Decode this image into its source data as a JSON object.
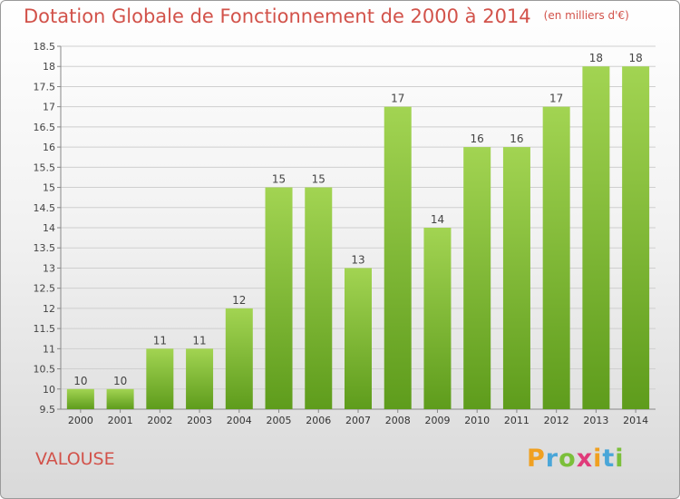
{
  "title": "Dotation Globale de Fonctionnement de 2000 à 2014",
  "unit": "(en milliers d'€)",
  "commune": "VALOUSE",
  "logo": "Proxiti",
  "colors": {
    "title": "#d2524a",
    "bar_top": "#a2d452",
    "bar_bottom": "#5e9c1c"
  },
  "chart_data": {
    "type": "bar",
    "categories": [
      "2000",
      "2001",
      "2002",
      "2003",
      "2004",
      "2005",
      "2006",
      "2007",
      "2008",
      "2009",
      "2010",
      "2011",
      "2012",
      "2013",
      "2014"
    ],
    "values": [
      10,
      10,
      11,
      11,
      12,
      15,
      15,
      13,
      17,
      14,
      16,
      16,
      17,
      18,
      18
    ],
    "ylim": [
      9.5,
      18.5
    ],
    "yticks": [
      9.5,
      10,
      10.5,
      11,
      11.5,
      12,
      12.5,
      13,
      13.5,
      14,
      14.5,
      15,
      15.5,
      16,
      16.5,
      17,
      17.5,
      18,
      18.5
    ],
    "grid": true
  }
}
